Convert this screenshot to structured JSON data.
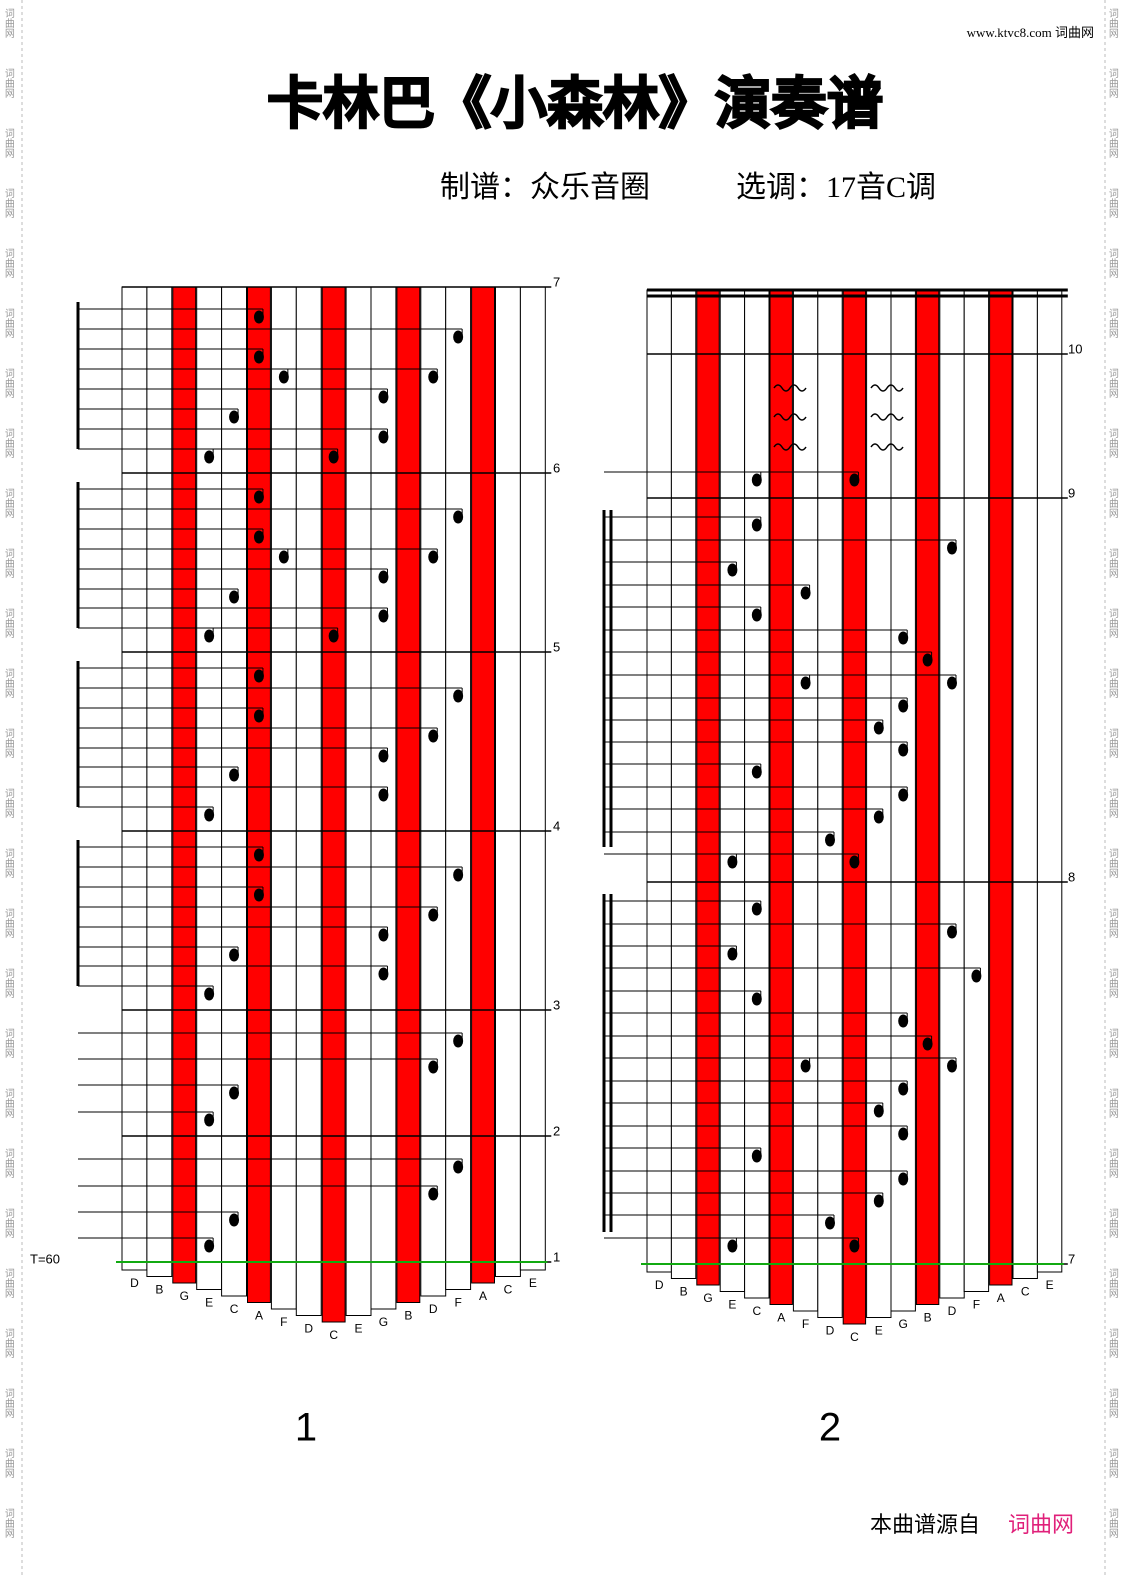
{
  "header": {
    "site": "www.ktvc8.com 词曲网",
    "title": "卡林巴《小森林》演奏谱",
    "arranger": "制谱：众乐音圈",
    "key": "选调：17音C调"
  },
  "watermark": "词曲网",
  "panels": [
    {
      "page": "1",
      "tempo": "T=60",
      "keys": [
        "D",
        "B",
        "G",
        "E",
        "C",
        "A",
        "F",
        "D",
        "C",
        "E",
        "G",
        "B",
        "D",
        "F",
        "A",
        "C",
        "E"
      ],
      "measures": [
        "7",
        "6",
        "5",
        "4",
        "3",
        "2",
        "1"
      ]
    },
    {
      "page": "2",
      "keys": [
        "D",
        "B",
        "G",
        "E",
        "C",
        "A",
        "F",
        "D",
        "C",
        "E",
        "G",
        "B",
        "D",
        "F",
        "A",
        "C",
        "E"
      ],
      "measures": [
        "10",
        "9",
        "8",
        "7"
      ]
    }
  ],
  "footer": {
    "source": "本曲谱源自",
    "site": "词曲网"
  }
}
